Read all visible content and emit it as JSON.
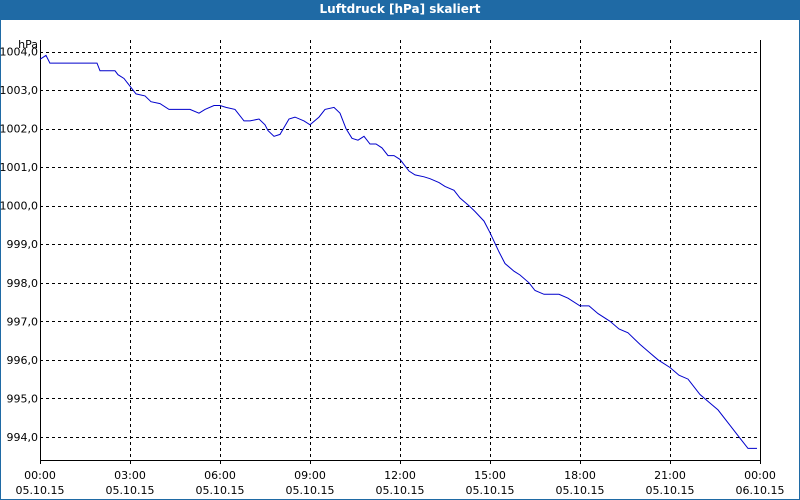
{
  "window": {
    "title": "Luftdruck [hPa] skaliert"
  },
  "colors": {
    "titlebar": "#1f6aa5",
    "line": "#0000cc",
    "grid": "#000000",
    "axis": "#000000"
  },
  "chart_data": {
    "type": "line",
    "title": "Luftdruck [hPa] skaliert",
    "ylabel": "hPa",
    "xlabel": "",
    "ylim": [
      993.4,
      1004.3
    ],
    "xlim": [
      0,
      24
    ],
    "grid": true,
    "yticks": [
      {
        "value": 994,
        "label": "994,0"
      },
      {
        "value": 995,
        "label": "995,0"
      },
      {
        "value": 996,
        "label": "996,0"
      },
      {
        "value": 997,
        "label": "997,0"
      },
      {
        "value": 998,
        "label": "998,0"
      },
      {
        "value": 999,
        "label": "999,0"
      },
      {
        "value": 1000,
        "label": "1000,0"
      },
      {
        "value": 1001,
        "label": "1001,0"
      },
      {
        "value": 1002,
        "label": "1002,0"
      },
      {
        "value": 1003,
        "label": "1003,0"
      },
      {
        "value": 1004,
        "label": "1004,0"
      }
    ],
    "xticks": [
      {
        "hour": 0,
        "time": "00:00",
        "date": "05.10.15"
      },
      {
        "hour": 3,
        "time": "03:00",
        "date": "05.10.15"
      },
      {
        "hour": 6,
        "time": "06:00",
        "date": "05.10.15"
      },
      {
        "hour": 9,
        "time": "09:00",
        "date": "05.10.15"
      },
      {
        "hour": 12,
        "time": "12:00",
        "date": "05.10.15"
      },
      {
        "hour": 15,
        "time": "15:00",
        "date": "05.10.15"
      },
      {
        "hour": 18,
        "time": "18:00",
        "date": "05.10.15"
      },
      {
        "hour": 21,
        "time": "21:00",
        "date": "05.10.15"
      },
      {
        "hour": 24,
        "time": "00:00",
        "date": "06.10.15"
      }
    ],
    "series": [
      {
        "x": [
          0.0,
          0.2,
          0.33,
          0.4,
          1.0,
          1.5,
          1.9,
          2.0,
          2.5,
          2.6,
          2.8,
          3.0,
          3.2,
          3.5,
          3.7,
          4.0,
          4.3,
          4.7,
          5.0,
          5.3,
          5.5,
          5.8,
          6.0,
          6.2,
          6.5,
          6.8,
          7.0,
          7.3,
          7.5,
          7.6,
          7.8,
          8.0,
          8.3,
          8.5,
          8.8,
          9.0,
          9.3,
          9.5,
          9.8,
          10.0,
          10.2,
          10.4,
          10.6,
          10.8,
          11.0,
          11.2,
          11.4,
          11.6,
          11.8,
          12.0,
          12.3,
          12.5,
          12.8,
          13.0,
          13.3,
          13.5,
          13.8,
          14.0,
          14.3,
          14.5,
          14.8,
          15.0,
          15.3,
          15.5,
          15.8,
          16.0,
          16.3,
          16.5,
          16.8,
          17.0,
          17.3,
          17.6,
          18.0,
          18.3,
          18.6,
          19.0,
          19.3,
          19.6,
          20.0,
          20.3,
          20.6,
          21.0,
          21.3,
          21.6,
          22.0,
          22.3,
          22.6,
          23.0,
          23.3,
          23.6,
          23.9
        ],
        "y": [
          1003.8,
          1003.9,
          1003.7,
          1003.7,
          1003.7,
          1003.7,
          1003.7,
          1003.5,
          1003.5,
          1003.4,
          1003.3,
          1003.1,
          1002.9,
          1002.85,
          1002.7,
          1002.65,
          1002.5,
          1002.5,
          1002.5,
          1002.4,
          1002.5,
          1002.6,
          1002.6,
          1002.55,
          1002.5,
          1002.2,
          1002.2,
          1002.25,
          1002.1,
          1001.95,
          1001.8,
          1001.85,
          1002.25,
          1002.3,
          1002.2,
          1002.1,
          1002.3,
          1002.5,
          1002.55,
          1002.4,
          1002.0,
          1001.75,
          1001.7,
          1001.8,
          1001.6,
          1001.6,
          1001.5,
          1001.3,
          1001.3,
          1001.2,
          1000.9,
          1000.8,
          1000.75,
          1000.7,
          1000.6,
          1000.5,
          1000.4,
          1000.2,
          1000.0,
          999.85,
          999.6,
          999.3,
          998.8,
          998.5,
          998.3,
          998.2,
          998.0,
          997.8,
          997.7,
          997.7,
          997.7,
          997.6,
          997.4,
          997.4,
          997.2,
          997.0,
          996.8,
          996.7,
          996.4,
          996.2,
          996.0,
          995.8,
          995.6,
          995.5,
          995.1,
          994.9,
          994.7,
          994.3,
          994.0,
          993.7,
          993.7
        ]
      }
    ]
  }
}
